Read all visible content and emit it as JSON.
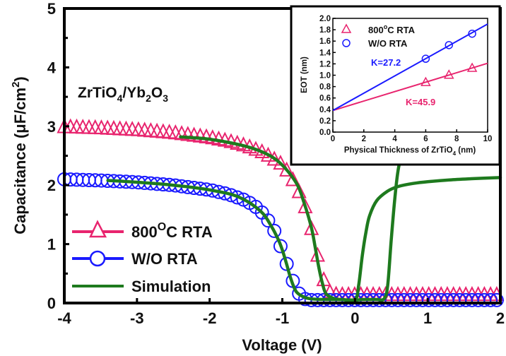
{
  "colors": {
    "rta800": "#e8246e",
    "wo_rta": "#1a1aff",
    "simulation": "#1e7a1e",
    "axis": "#000000"
  },
  "chart_data": [
    {
      "id": "main",
      "type": "line",
      "title": "",
      "annotation": {
        "main": "ZrTiO",
        "sub1": "4",
        "mid": "/Yb",
        "sub2": "2",
        "tail": "O",
        "sub3": "3"
      },
      "xlabel": "Voltage (V)",
      "ylabel": {
        "pre": "Capacitance (μF/cm",
        "sup": "2",
        "post": ")"
      },
      "xlim": [
        -4,
        2
      ],
      "ylim": [
        0,
        5
      ],
      "xticks": [
        "-4",
        "-3",
        "-2",
        "-1",
        "0",
        "1",
        "2"
      ],
      "yticks": [
        "0",
        "1",
        "2",
        "3",
        "4",
        "5"
      ],
      "legend_position": "bottom-left",
      "legend": [
        {
          "key": "rta800",
          "pre": "800",
          "sup": "O",
          "post": "C RTA",
          "marker": "triangle"
        },
        {
          "key": "wo_rta",
          "pre": "W/O RTA",
          "sup": "",
          "post": "",
          "marker": "circle"
        },
        {
          "key": "simulation",
          "pre": "Simulation",
          "sup": "",
          "post": "",
          "marker": "line"
        }
      ],
      "series": [
        {
          "name": "800°C RTA",
          "key": "rta800",
          "marker": "triangle",
          "x": [
            -4.0,
            -3.5,
            -3.0,
            -2.5,
            -2.0,
            -1.75,
            -1.5,
            -1.25,
            -1.0,
            -0.9,
            -0.8,
            -0.7,
            -0.65,
            -0.6,
            -0.55,
            -0.5,
            -0.45,
            -0.4,
            -0.35,
            -0.3,
            -0.2,
            -0.1,
            0.0,
            0.5,
            1.0,
            1.5,
            2.0
          ],
          "y": [
            2.98,
            2.96,
            2.93,
            2.88,
            2.8,
            2.74,
            2.66,
            2.54,
            2.34,
            2.18,
            1.96,
            1.68,
            1.48,
            1.25,
            0.98,
            0.72,
            0.45,
            0.28,
            0.18,
            0.14,
            0.13,
            0.13,
            0.13,
            0.13,
            0.13,
            0.13,
            0.13
          ]
        },
        {
          "name": "W/O RTA",
          "key": "wo_rta",
          "marker": "circle",
          "x": [
            -4.0,
            -3.5,
            -3.0,
            -2.5,
            -2.0,
            -1.75,
            -1.5,
            -1.35,
            -1.25,
            -1.15,
            -1.1,
            -1.05,
            -1.0,
            -0.95,
            -0.9,
            -0.85,
            -0.8,
            -0.75,
            -0.7,
            -0.6,
            -0.5,
            0.0,
            0.5,
            1.0,
            1.5,
            2.0
          ],
          "y": [
            2.1,
            2.08,
            2.05,
            2.0,
            1.92,
            1.85,
            1.74,
            1.62,
            1.5,
            1.32,
            1.2,
            1.05,
            0.88,
            0.7,
            0.52,
            0.36,
            0.22,
            0.12,
            0.07,
            0.05,
            0.05,
            0.05,
            0.05,
            0.05,
            0.05,
            0.05
          ]
        },
        {
          "name": "Simulation (RTA fit)",
          "key": "simulation",
          "marker": "none",
          "x": [
            -2.4,
            -2.0,
            -1.5,
            -1.2,
            -1.0,
            -0.8,
            -0.7,
            -0.6,
            -0.55,
            -0.5,
            -0.45,
            -0.4,
            -0.3,
            -0.2,
            0.0,
            0.1,
            0.2,
            0.3,
            0.4,
            0.45,
            0.5,
            0.55,
            0.6,
            0.7,
            0.8
          ],
          "y": [
            2.82,
            2.78,
            2.66,
            2.52,
            2.34,
            2.02,
            1.7,
            1.28,
            0.96,
            0.62,
            0.34,
            0.16,
            0.08,
            0.06,
            0.05,
            0.06,
            0.06,
            0.06,
            0.07,
            0.3,
            1.1,
            1.8,
            2.3,
            2.8,
            3.28
          ]
        },
        {
          "name": "Simulation (W/O RTA fit)",
          "key": "simulation",
          "marker": "none",
          "x": [
            -3.4,
            -3.0,
            -2.5,
            -2.0,
            -1.6,
            -1.3,
            -1.15,
            -1.05,
            -1.0,
            -0.95,
            -0.9,
            -0.85,
            -0.8,
            -0.7,
            -0.6,
            -0.4,
            -0.2,
            0.0,
            0.05,
            0.1,
            0.15,
            0.2,
            0.3,
            0.45,
            0.6,
            0.8,
            1.0,
            1.3,
            1.6,
            2.0
          ],
          "y": [
            2.08,
            2.05,
            2.0,
            1.92,
            1.8,
            1.56,
            1.3,
            1.06,
            0.9,
            0.7,
            0.48,
            0.3,
            0.18,
            0.1,
            0.07,
            0.06,
            0.06,
            0.06,
            0.3,
            0.8,
            1.2,
            1.48,
            1.74,
            1.9,
            1.98,
            2.03,
            2.06,
            2.09,
            2.11,
            2.13
          ]
        }
      ]
    },
    {
      "id": "inset",
      "type": "scatter",
      "title": "",
      "xlabel": {
        "pre": "Physical Thickness of ZrTiO",
        "sub": "4",
        "post": " (nm)"
      },
      "ylabel": "EOT (nm)",
      "xlim": [
        0,
        10
      ],
      "ylim": [
        0,
        2.0
      ],
      "xticks": [
        "0",
        "2",
        "4",
        "6",
        "8",
        "10"
      ],
      "yticks": [
        "0.0",
        "0.2",
        "0.4",
        "0.6",
        "0.8",
        "1.0",
        "1.2",
        "1.4",
        "1.6",
        "1.8",
        "2.0"
      ],
      "legend_position": "top-left",
      "legend": [
        {
          "key": "rta800",
          "pre": "800",
          "sup": "o",
          "post": "C RTA",
          "marker": "triangle"
        },
        {
          "key": "wo_rta",
          "pre": "W/O RTA",
          "sup": "",
          "post": "",
          "marker": "circle"
        }
      ],
      "series": [
        {
          "name": "800°C RTA",
          "key": "rta800",
          "marker": "triangle",
          "x": [
            6,
            7.5,
            9
          ],
          "y": [
            0.88,
            1.01,
            1.13
          ],
          "fit": {
            "x": [
              0,
              10
            ],
            "y": [
              0.38,
              1.21
            ]
          },
          "label": "K=45.9"
        },
        {
          "name": "W/O RTA",
          "key": "wo_rta",
          "marker": "circle",
          "x": [
            6,
            7.5,
            9
          ],
          "y": [
            1.29,
            1.53,
            1.73
          ],
          "fit": {
            "x": [
              0,
              10
            ],
            "y": [
              0.38,
              1.9
            ]
          },
          "label": "K=27.2"
        }
      ]
    }
  ]
}
